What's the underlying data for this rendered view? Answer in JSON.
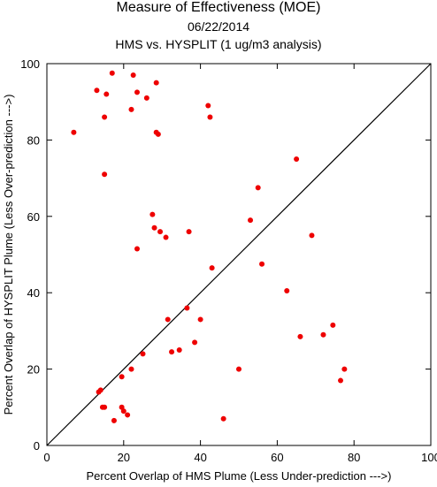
{
  "chart_data": {
    "type": "scatter",
    "title": "Measure of Effectiveness (MOE)",
    "subtitle_date": "06/22/2014",
    "subtitle": "HMS vs. HYSPLIT  (1 ug/m3 analysis)",
    "xlabel": "Percent Overlap of HMS Plume (Less Under-prediction --->)",
    "ylabel": "Percent Overlap of HYSPLIT Plume (Less Over-prediction --->)",
    "xlim": [
      0,
      100
    ],
    "ylim": [
      0,
      100
    ],
    "xticks": [
      0,
      20,
      40,
      60,
      80,
      100
    ],
    "yticks": [
      0,
      20,
      40,
      60,
      80,
      100
    ],
    "diagonal": true,
    "point_color": "#ee0000",
    "points": [
      {
        "x": 7,
        "y": 82
      },
      {
        "x": 13,
        "y": 93
      },
      {
        "x": 15,
        "y": 86
      },
      {
        "x": 15.5,
        "y": 92
      },
      {
        "x": 17,
        "y": 97.5
      },
      {
        "x": 22.5,
        "y": 97
      },
      {
        "x": 23.5,
        "y": 92.5
      },
      {
        "x": 22,
        "y": 88
      },
      {
        "x": 26,
        "y": 91
      },
      {
        "x": 28.5,
        "y": 95
      },
      {
        "x": 28.5,
        "y": 82
      },
      {
        "x": 29,
        "y": 81.5
      },
      {
        "x": 15,
        "y": 71
      },
      {
        "x": 42,
        "y": 89
      },
      {
        "x": 42.5,
        "y": 86
      },
      {
        "x": 65,
        "y": 75
      },
      {
        "x": 55,
        "y": 67.5
      },
      {
        "x": 53,
        "y": 59
      },
      {
        "x": 69,
        "y": 55
      },
      {
        "x": 27.5,
        "y": 60.5
      },
      {
        "x": 28,
        "y": 57
      },
      {
        "x": 29.5,
        "y": 56
      },
      {
        "x": 31,
        "y": 54.5
      },
      {
        "x": 37,
        "y": 56
      },
      {
        "x": 23.5,
        "y": 51.5
      },
      {
        "x": 56,
        "y": 47.5
      },
      {
        "x": 43,
        "y": 46.5
      },
      {
        "x": 62.5,
        "y": 40.5
      },
      {
        "x": 36.5,
        "y": 36
      },
      {
        "x": 31.5,
        "y": 33
      },
      {
        "x": 40,
        "y": 33
      },
      {
        "x": 74.5,
        "y": 31.5
      },
      {
        "x": 66,
        "y": 28.5
      },
      {
        "x": 72,
        "y": 29
      },
      {
        "x": 38.5,
        "y": 27
      },
      {
        "x": 32.5,
        "y": 24.5
      },
      {
        "x": 34.5,
        "y": 25
      },
      {
        "x": 25,
        "y": 24
      },
      {
        "x": 22,
        "y": 20
      },
      {
        "x": 50,
        "y": 20
      },
      {
        "x": 77.5,
        "y": 20
      },
      {
        "x": 76.5,
        "y": 17
      },
      {
        "x": 19.5,
        "y": 18
      },
      {
        "x": 13.5,
        "y": 14
      },
      {
        "x": 14,
        "y": 14.5
      },
      {
        "x": 14.5,
        "y": 10
      },
      {
        "x": 15,
        "y": 10
      },
      {
        "x": 19.5,
        "y": 10
      },
      {
        "x": 20,
        "y": 9
      },
      {
        "x": 21,
        "y": 8
      },
      {
        "x": 17.5,
        "y": 6.5
      },
      {
        "x": 46,
        "y": 7
      }
    ]
  }
}
